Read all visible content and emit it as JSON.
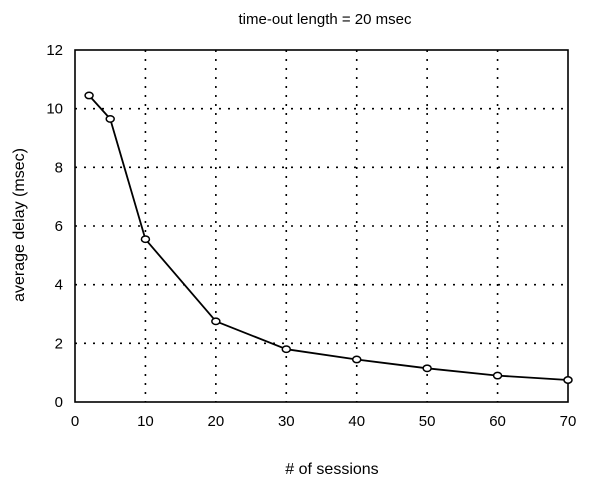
{
  "chart_data": {
    "type": "line",
    "title": "time-out length = 20 msec",
    "xlabel": "# of sessions",
    "ylabel": "average delay (msec)",
    "xlim": [
      0,
      70
    ],
    "ylim": [
      0,
      12
    ],
    "x_ticks": [
      0,
      10,
      20,
      30,
      40,
      50,
      60,
      70
    ],
    "y_ticks": [
      0,
      2,
      4,
      6,
      8,
      10,
      12
    ],
    "grid": true,
    "grid_style": "dotted",
    "marker": "open-circle",
    "line_color": "#000000",
    "series": [
      {
        "x": [
          2,
          5,
          10,
          20,
          30,
          40,
          50,
          60,
          70
        ],
        "y": [
          10.45,
          9.65,
          5.55,
          2.75,
          1.8,
          1.45,
          1.15,
          0.9,
          0.75
        ]
      }
    ]
  }
}
